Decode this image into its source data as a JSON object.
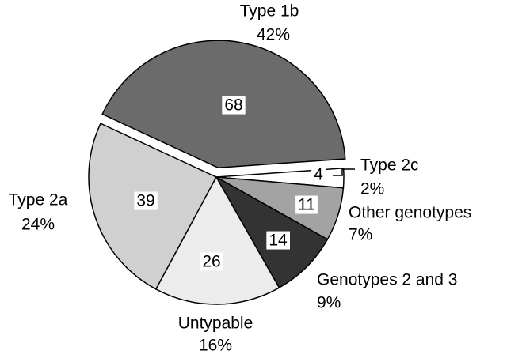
{
  "chart_data": {
    "type": "pie",
    "categories": [
      "Type 1b",
      "Type 2c",
      "Other genotypes",
      "Genotypes 2 and 3",
      "Untypable",
      "Type 2a"
    ],
    "values": [
      68,
      4,
      11,
      14,
      26,
      39
    ],
    "percent_labels": [
      "42%",
      "2%",
      "7%",
      "9%",
      "16%",
      "24%"
    ],
    "colors": [
      "#6b6b6b",
      "#ffffff",
      "#a3a3a3",
      "#333333",
      "#ececec",
      "#d0d0d0"
    ],
    "exploded": [
      "Type 1b"
    ]
  }
}
